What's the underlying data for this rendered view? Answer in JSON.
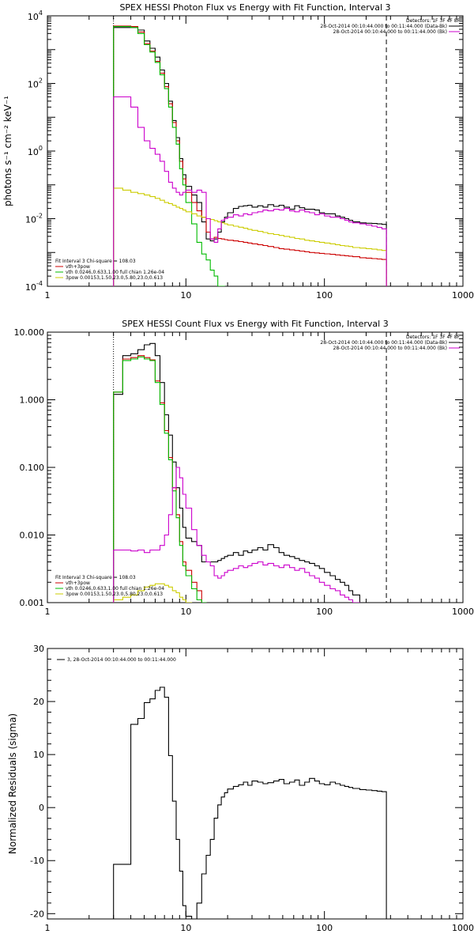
{
  "chart_data": [
    {
      "type": "line",
      "title": "SPEX HESSI Photon Flux vs Energy with Fit Function, Interval 3",
      "xlabel": "",
      "ylabel": "photons s⁻¹ cm⁻² keV⁻¹",
      "xscale": "log",
      "yscale": "log",
      "xlim": [
        1,
        1000
      ],
      "ylim": [
        0.0001,
        10000
      ],
      "x_ticks": [
        "1",
        "10",
        "100",
        "1000"
      ],
      "y_ticks": [
        {
          "base": "10",
          "exp": "-4",
          "value": 0.0001
        },
        {
          "base": "10",
          "exp": "-2",
          "value": 0.01
        },
        {
          "base": "10",
          "exp": "0",
          "value": 1
        },
        {
          "base": "10",
          "exp": "2",
          "value": 100
        },
        {
          "base": "10",
          "exp": "4",
          "value": 10000
        }
      ],
      "legend_tr": {
        "header": "Detectors: 1F 3F 4F 8F",
        "entries": [
          {
            "text": "28-Oct-2014 00:10:44.000 to 00:11:44.000 (Data-Bk)",
            "color": "#000000"
          },
          {
            "text": "28-Oct-2014 00:10:44.000 to 00:11:44.000 (Bk)",
            "color": "#cc00cc"
          }
        ]
      },
      "legend_bl": {
        "header": "Fit Interval 3   Chi-square = 108.03",
        "entries": [
          {
            "text": "vth+3pow",
            "color": "#cc0000"
          },
          {
            "text": "vth 0.0246,0.633,1.00  full chian 1.26e-04",
            "color": "#00bb00"
          },
          {
            "text": "3pow 0.00153,1.50,23.0,5.80,23.0,0.613",
            "color": "#cccc00"
          }
        ]
      },
      "vlines": [
        {
          "x": 3,
          "style": "dotted"
        },
        {
          "x": 280,
          "style": "dashed"
        }
      ],
      "edges": [
        3,
        3.5,
        4,
        4.5,
        5,
        5.5,
        6,
        6.5,
        7,
        7.5,
        8,
        8.5,
        9,
        9.5,
        10,
        11,
        12,
        13,
        14,
        15,
        16,
        17,
        18,
        19,
        20,
        22,
        24,
        26,
        28,
        30,
        33,
        36,
        39,
        43,
        47,
        51,
        56,
        61,
        66,
        72,
        78,
        85,
        92,
        100,
        110,
        120,
        130,
        140,
        150,
        160,
        180,
        200,
        220,
        240,
        260,
        280
      ],
      "series": [
        {
          "name": "28-Oct-2014 00:10:44.000 to 00:11:44.000 (Data-Bk)",
          "color": "#000000",
          "style": "step",
          "values": [
            4500,
            4500,
            4500,
            3800,
            1800,
            1100,
            600,
            250,
            100,
            30,
            8,
            2.5,
            0.6,
            0.2,
            0.09,
            0.05,
            0.03,
            0.008,
            0.0025,
            0.0022,
            0.0025,
            0.004,
            0.008,
            0.011,
            0.015,
            0.02,
            0.023,
            0.024,
            0.025,
            0.022,
            0.024,
            0.022,
            0.026,
            0.023,
            0.025,
            0.022,
            0.019,
            0.024,
            0.021,
            0.019,
            0.019,
            0.018,
            0.015,
            0.014,
            0.014,
            0.012,
            0.011,
            0.01,
            0.009,
            0.008,
            0.0075,
            0.0073,
            0.0072,
            0.007,
            0.0068
          ]
        },
        {
          "name": "vth+3pow",
          "color": "#cc0000",
          "style": "step",
          "values": [
            5000,
            5000,
            4800,
            3300,
            1500,
            900,
            450,
            200,
            80,
            25,
            7,
            2,
            0.5,
            0.15,
            0.06,
            0.03,
            0.017,
            0.011,
            0.004,
            0.0025,
            0.0028,
            0.0026,
            0.0025,
            0.0024,
            0.0023,
            0.0022,
            0.0021,
            0.002,
            0.0019,
            0.0018,
            0.0017,
            0.0016,
            0.0015,
            0.0014,
            0.0013,
            0.00125,
            0.0012,
            0.00115,
            0.0011,
            0.00105,
            0.001,
            0.00097,
            0.00094,
            0.00091,
            0.00088,
            0.00085,
            0.00082,
            0.0008,
            0.00078,
            0.00075,
            0.0007,
            0.00068,
            0.00066,
            0.00064,
            0.00062
          ]
        },
        {
          "name": "vth 0.0246,0.633,1.00  full chian 1.26e-04",
          "color": "#00bb00",
          "style": "step",
          "values": [
            4800,
            4800,
            4500,
            3000,
            1400,
            850,
            420,
            180,
            70,
            20,
            5,
            1.6,
            0.3,
            0.1,
            0.03,
            0.007,
            0.002,
            0.0009,
            0.0006,
            0.0003,
            0.0002,
            0.0001,
            0.0001
          ]
        },
        {
          "name": "3pow 0.00153,1.50,23.0,5.80,23.0,0.613",
          "color": "#cccc00",
          "style": "step",
          "values": [
            0.08,
            0.07,
            0.06,
            0.055,
            0.05,
            0.045,
            0.04,
            0.035,
            0.03,
            0.028,
            0.025,
            0.022,
            0.02,
            0.018,
            0.016,
            0.014,
            0.012,
            0.011,
            0.01,
            0.0095,
            0.0087,
            0.008,
            0.0075,
            0.007,
            0.0065,
            0.006,
            0.0056,
            0.0052,
            0.0048,
            0.0045,
            0.0042,
            0.0039,
            0.0036,
            0.0034,
            0.0032,
            0.003,
            0.0028,
            0.0026,
            0.0025,
            0.0023,
            0.0022,
            0.0021,
            0.002,
            0.0019,
            0.0018,
            0.0017,
            0.0016,
            0.00155,
            0.0015,
            0.0014,
            0.00135,
            0.0013,
            0.00125,
            0.0012,
            0.00115
          ]
        },
        {
          "name": "28-Oct-2014 00:10:44.000 to 00:11:44.000 (Bk)",
          "color": "#cc00cc",
          "style": "step",
          "values": [
            40,
            40,
            20,
            5,
            2,
            1.2,
            0.8,
            0.5,
            0.25,
            0.12,
            0.08,
            0.06,
            0.05,
            0.06,
            0.07,
            0.06,
            0.07,
            0.06,
            0.01,
            0.0025,
            0.002,
            0.005,
            0.009,
            0.01,
            0.011,
            0.013,
            0.012,
            0.014,
            0.013,
            0.015,
            0.016,
            0.018,
            0.017,
            0.019,
            0.018,
            0.02,
            0.017,
            0.016,
            0.018,
            0.016,
            0.015,
            0.013,
            0.014,
            0.012,
            0.011,
            0.011,
            0.01,
            0.009,
            0.008,
            0.0075,
            0.007,
            0.0065,
            0.006,
            0.0055,
            0.005
          ]
        }
      ]
    },
    {
      "type": "line",
      "title": "SPEX HESSI Count Flux vs Energy with Fit Function, Interval 3",
      "xlabel": "",
      "ylabel": "",
      "xscale": "log",
      "yscale": "log",
      "xlim": [
        1,
        1000
      ],
      "ylim": [
        0.001,
        10
      ],
      "x_ticks": [
        "1",
        "10",
        "100",
        "1000"
      ],
      "y_ticks": [
        {
          "label": "0.001",
          "value": 0.001
        },
        {
          "label": "0.010",
          "value": 0.01
        },
        {
          "label": "0.100",
          "value": 0.1
        },
        {
          "label": "1.000",
          "value": 1
        },
        {
          "label": "10.000",
          "value": 10
        }
      ],
      "legend_tr": {
        "header": "Detectors: 1F 3F 4F 8F",
        "entries": [
          {
            "text": "28-Oct-2014 00:10:44.000 to 00:11:44.000 (Data-Bk)",
            "color": "#000000"
          },
          {
            "text": "28-Oct-2014 00:10:44.000 to 00:11:44.000 (Bk)",
            "color": "#cc00cc"
          }
        ]
      },
      "legend_bl": {
        "header": "Fit Interval 3   Chi-square = 108.03",
        "entries": [
          {
            "text": "vth+3pow",
            "color": "#cc0000"
          },
          {
            "text": "vth 0.0246,0.633,1.00  full chian 1.26e-04",
            "color": "#00bb00"
          },
          {
            "text": "3pow 0.00153,1.50,23.0,5.80,23.0,0.613",
            "color": "#cccc00"
          }
        ]
      },
      "vlines": [
        {
          "x": 3,
          "style": "dotted"
        },
        {
          "x": 280,
          "style": "dashed"
        }
      ],
      "edges": [
        3,
        3.5,
        4,
        4.5,
        5,
        5.5,
        6,
        6.5,
        7,
        7.5,
        8,
        8.5,
        9,
        9.5,
        10,
        11,
        12,
        13,
        14,
        15,
        16,
        17,
        18,
        19,
        20,
        22,
        24,
        26,
        28,
        30,
        33,
        36,
        39,
        43,
        47,
        51,
        56,
        61,
        66,
        72,
        78,
        85,
        92,
        100,
        110,
        120,
        130,
        140,
        150,
        160,
        180,
        200,
        220,
        240,
        260,
        280
      ],
      "series": [
        {
          "name": "28-Oct-2014 00:10:44.000 to 00:11:44.000 (Data-Bk)",
          "color": "#000000",
          "style": "step",
          "values": [
            1.2,
            4.5,
            4.8,
            5.5,
            6.5,
            6.8,
            4.5,
            1.8,
            0.6,
            0.3,
            0.12,
            0.05,
            0.025,
            0.013,
            0.009,
            0.008,
            0.007,
            0.004,
            0.004,
            0.004,
            0.004,
            0.0042,
            0.0045,
            0.0048,
            0.005,
            0.0055,
            0.005,
            0.0058,
            0.0055,
            0.006,
            0.0065,
            0.006,
            0.0072,
            0.0065,
            0.0055,
            0.005,
            0.0048,
            0.0045,
            0.0042,
            0.004,
            0.0038,
            0.0035,
            0.0032,
            0.0028,
            0.0025,
            0.0022,
            0.002,
            0.0018,
            0.0015,
            0.0013
          ]
        },
        {
          "name": "vth+3pow",
          "color": "#cc0000",
          "style": "step",
          "values": [
            1.3,
            4.0,
            4.2,
            4.5,
            4.2,
            3.9,
            1.9,
            0.9,
            0.35,
            0.14,
            0.05,
            0.02,
            0.008,
            0.004,
            0.003,
            0.002,
            0.0015,
            0.001
          ]
        },
        {
          "name": "vth 0.0246,0.633,1.00  full chian 1.26e-04",
          "color": "#00bb00",
          "style": "step",
          "values": [
            1.3,
            3.8,
            4.0,
            4.3,
            4.0,
            3.8,
            1.8,
            0.85,
            0.32,
            0.13,
            0.045,
            0.018,
            0.007,
            0.0035,
            0.0025,
            0.0016,
            0.0011,
            0.001
          ]
        },
        {
          "name": "3pow 0.00153,1.50,23.0,5.80,23.0,0.613",
          "color": "#cccc00",
          "style": "step",
          "values": [
            0.0011,
            0.0012,
            0.0013,
            0.0015,
            0.0017,
            0.0018,
            0.0019,
            0.0019,
            0.0018,
            0.0017,
            0.0015,
            0.0014,
            0.0012,
            0.0011,
            0.001
          ]
        },
        {
          "name": "28-Oct-2014 00:10:44.000 to 00:11:44.000 (Bk)",
          "color": "#cc00cc",
          "style": "step",
          "values": [
            0.006,
            0.006,
            0.0058,
            0.006,
            0.0055,
            0.006,
            0.006,
            0.007,
            0.01,
            0.02,
            0.05,
            0.1,
            0.07,
            0.04,
            0.025,
            0.012,
            0.007,
            0.005,
            0.004,
            0.0035,
            0.0025,
            0.0023,
            0.0025,
            0.0028,
            0.003,
            0.0032,
            0.0035,
            0.0033,
            0.0035,
            0.0038,
            0.004,
            0.0036,
            0.0038,
            0.0035,
            0.0033,
            0.0036,
            0.0033,
            0.003,
            0.0032,
            0.0028,
            0.0025,
            0.0023,
            0.002,
            0.0018,
            0.0016,
            0.0015,
            0.0013,
            0.0012,
            0.0011,
            0.001
          ]
        }
      ]
    },
    {
      "type": "line",
      "title": "",
      "xlabel": "",
      "ylabel": "Normalized Residuals (sigma)",
      "xscale": "log",
      "yscale": "linear",
      "xlim": [
        1,
        1000
      ],
      "ylim": [
        -21,
        30
      ],
      "x_ticks": [
        "1",
        "10",
        "100",
        "1000"
      ],
      "y_ticks": [
        {
          "label": "-20",
          "value": -20
        },
        {
          "label": "-10",
          "value": -10
        },
        {
          "label": "0",
          "value": 0
        },
        {
          "label": "10",
          "value": 10
        },
        {
          "label": "20",
          "value": 20
        },
        {
          "label": "30",
          "value": 30
        }
      ],
      "legend_tl": {
        "entries": [
          {
            "text": "3, 28-Oct-2014 00:10:44.000 to 00:11:44.000",
            "color": "#000000"
          }
        ]
      },
      "vlines": [],
      "edges": [
        3,
        3.5,
        4,
        4.5,
        5,
        5.5,
        6,
        6.5,
        7,
        7.5,
        8,
        8.5,
        9,
        9.5,
        10,
        11,
        12,
        13,
        14,
        15,
        16,
        17,
        18,
        19,
        20,
        22,
        24,
        26,
        28,
        30,
        33,
        36,
        39,
        43,
        47,
        51,
        56,
        61,
        66,
        72,
        78,
        85,
        92,
        100,
        110,
        120,
        130,
        140,
        150,
        160,
        180,
        200,
        220,
        240,
        260,
        280
      ],
      "series": [
        {
          "name": "3, 28-Oct-2014 00:10:44.000 to 00:11:44.000",
          "color": "#000000",
          "style": "step",
          "values": [
            -10.7,
            -10.7,
            15.7,
            16.8,
            19.8,
            20.5,
            22.1,
            22.7,
            20.8,
            9.8,
            1.2,
            -6,
            -12,
            -18.5,
            -20.5,
            -22,
            -18,
            -12.5,
            -9,
            -6,
            -2,
            0.5,
            2,
            2.8,
            3.5,
            4,
            4.3,
            4.8,
            4.2,
            5,
            4.8,
            4.5,
            4.7,
            5,
            5.3,
            4.5,
            4.8,
            5.2,
            4.2,
            4.8,
            5.5,
            5,
            4.5,
            4.3,
            4.8,
            4.5,
            4.2,
            4,
            3.8,
            3.6,
            3.4,
            3.3,
            3.2,
            3.1,
            3
          ]
        }
      ]
    }
  ]
}
